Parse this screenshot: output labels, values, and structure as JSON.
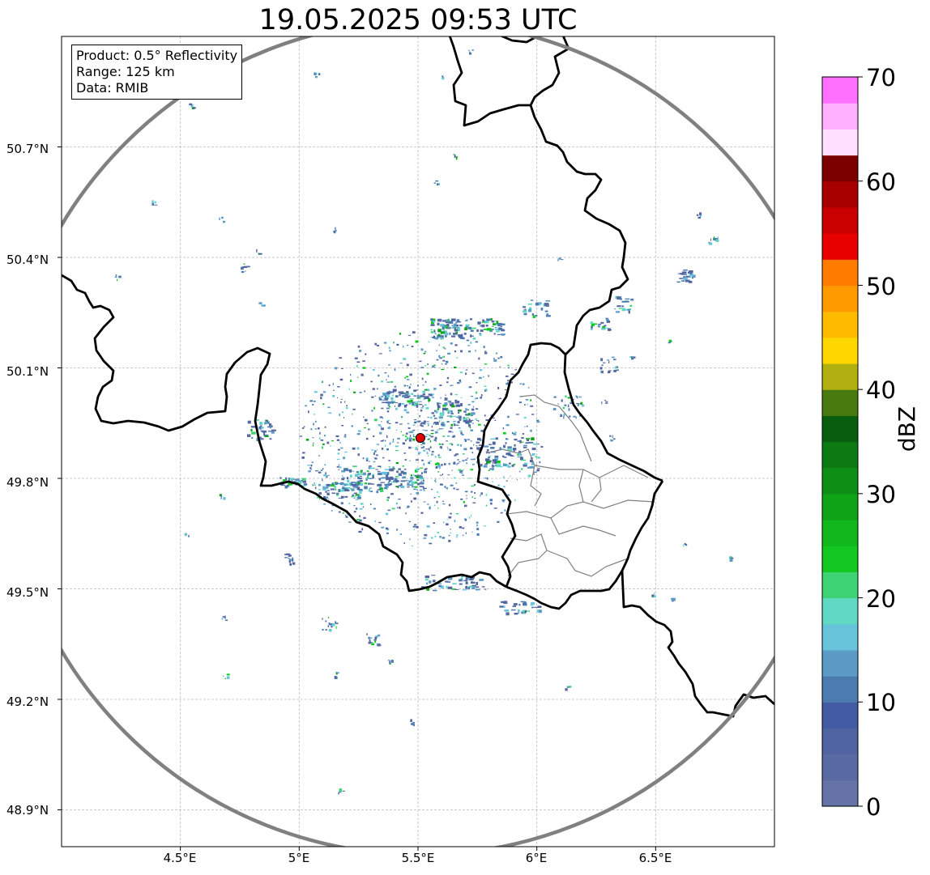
{
  "title": "19.05.2025 09:53 UTC",
  "info": {
    "product": "Product: 0.5° Reflectivity",
    "range": "Range: 125 km",
    "data": "Data: RMIB"
  },
  "axes": {
    "lat_ticks": [
      "50.7°N",
      "50.4°N",
      "50.1°N",
      "49.8°N",
      "49.5°N",
      "49.2°N",
      "48.9°N"
    ],
    "lon_ticks": [
      "4.5°E",
      "5°E",
      "5.5°E",
      "6°E",
      "6.5°E"
    ],
    "lon_range": [
      4.0,
      7.0
    ],
    "lat_range": [
      48.8,
      51.0
    ],
    "grid": true
  },
  "radar": {
    "site_lon": 5.51,
    "site_lat": 49.91,
    "range_km": 125,
    "site_marker_color": "#e00000",
    "range_ring_color": "#808080"
  },
  "colorbar": {
    "label": "dBZ",
    "ticks": [
      "70",
      "60",
      "50",
      "40",
      "30",
      "20",
      "10",
      "0"
    ],
    "min": 0,
    "max": 70,
    "step": 2.5,
    "colors": [
      "#6673a6",
      "#5a6aa3",
      "#4f64a1",
      "#435ba2",
      "#4c7bb0",
      "#5b9bc6",
      "#66c3da",
      "#60d8c4",
      "#3ed473",
      "#12c820",
      "#11b81b",
      "#0fa318",
      "#0f8e16",
      "#0c7a13",
      "#085d0e",
      "#497a10",
      "#b0b010",
      "#ffd700",
      "#ffbb00",
      "#ff9a00",
      "#ff7c00",
      "#e60000",
      "#c90000",
      "#a80000",
      "#7d0000",
      "#ffe0ff",
      "#ffb0ff",
      "#ff70ff",
      "#ee33ee"
    ]
  },
  "colors": {
    "border": "#000000",
    "district": "#808080",
    "grid": "#bbbbbb"
  }
}
